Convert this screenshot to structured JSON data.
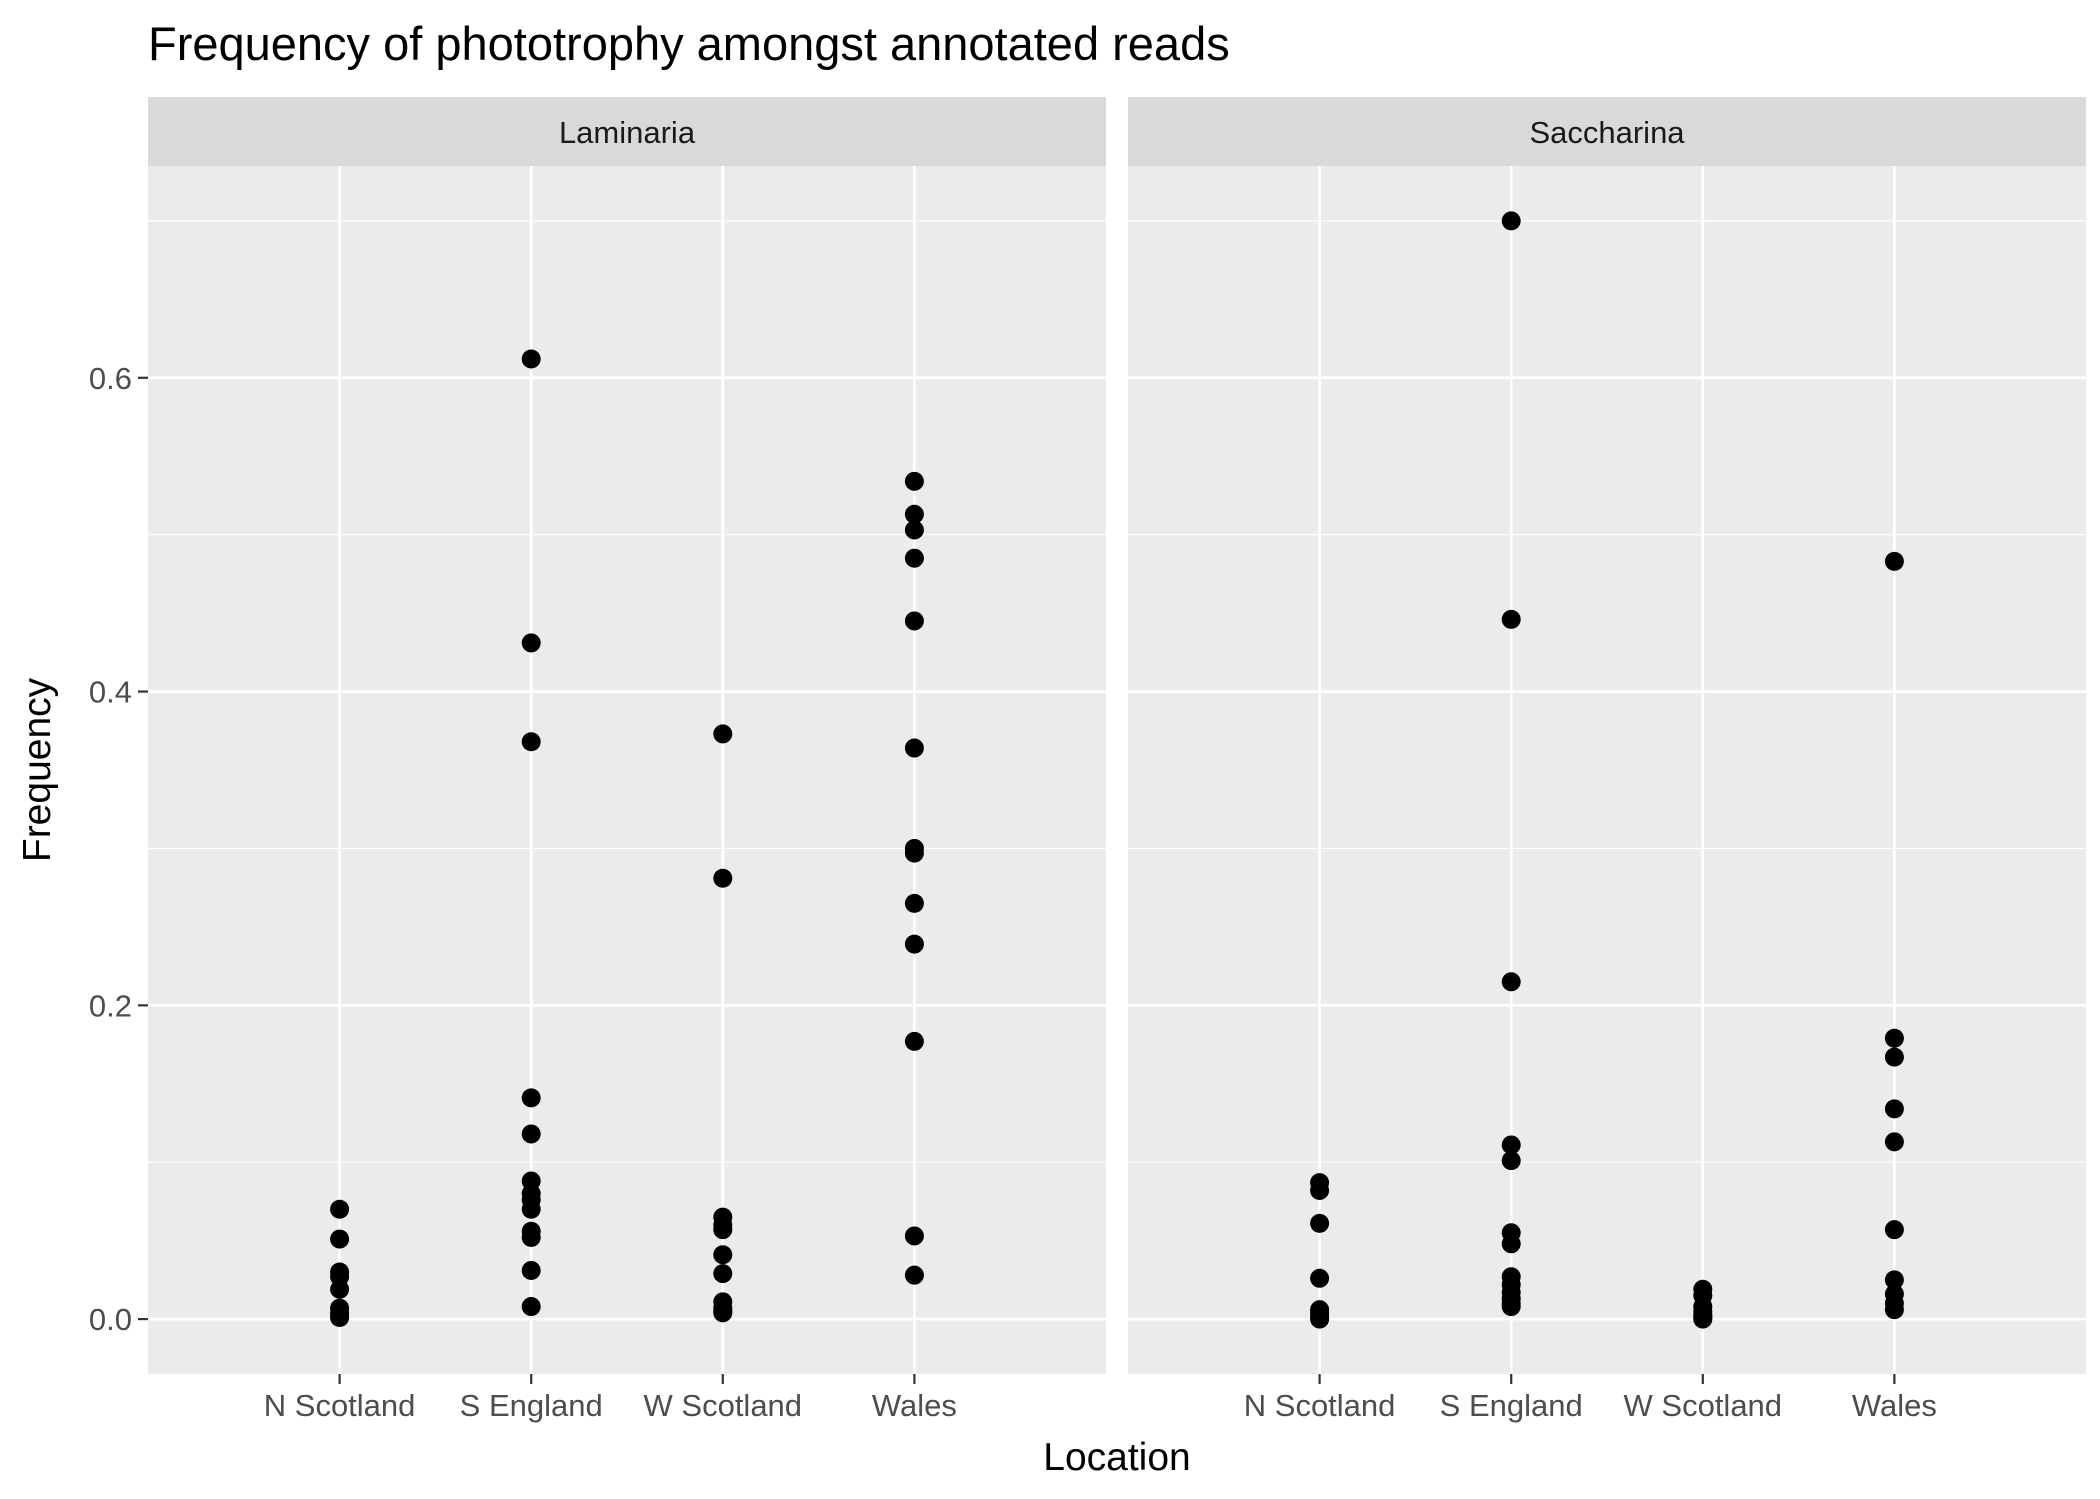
{
  "chart_data": {
    "type": "scatter",
    "title": "Frequency of phototrophy amongst annotated reads",
    "xlabel": "Location",
    "ylabel": "Frequency",
    "categories": [
      "N Scotland",
      "S England",
      "W Scotland",
      "Wales"
    ],
    "ylim": [
      -0.035,
      0.735
    ],
    "yticks": [
      0.0,
      0.2,
      0.4,
      0.6
    ],
    "ytick_labels": [
      "0.0",
      "0.2",
      "0.4",
      "0.6"
    ],
    "grid": true,
    "point_color": "#000000",
    "panel_background": "#ebebeb",
    "strip_background": "#d9d9d9",
    "facets": [
      {
        "name": "Laminaria",
        "points": {
          "N Scotland": [
            0.07,
            0.051,
            0.03,
            0.027,
            0.019,
            0.007,
            0.004,
            0.002,
            0.001
          ],
          "S England": [
            0.612,
            0.431,
            0.368,
            0.141,
            0.118,
            0.088,
            0.08,
            0.076,
            0.07,
            0.056,
            0.052,
            0.031,
            0.008
          ],
          "W Scotland": [
            0.373,
            0.281,
            0.065,
            0.06,
            0.057,
            0.041,
            0.029,
            0.011,
            0.007,
            0.005,
            0.004
          ],
          "Wales": [
            0.534,
            0.513,
            0.503,
            0.485,
            0.445,
            0.364,
            0.3,
            0.297,
            0.265,
            0.239,
            0.177,
            0.053,
            0.028
          ]
        }
      },
      {
        "name": "Saccharina",
        "points": {
          "N Scotland": [
            0.087,
            0.082,
            0.061,
            0.026,
            0.006,
            0.004,
            0.002,
            0.001,
            0.0
          ],
          "S England": [
            0.7,
            0.446,
            0.215,
            0.111,
            0.101,
            0.055,
            0.048,
            0.027,
            0.022,
            0.017,
            0.013,
            0.01,
            0.008
          ],
          "W Scotland": [
            0.019,
            0.015,
            0.008,
            0.005,
            0.003,
            0.002,
            0.001,
            0.0
          ],
          "Wales": [
            0.483,
            0.179,
            0.167,
            0.134,
            0.113,
            0.057,
            0.025,
            0.016,
            0.01,
            0.006
          ]
        }
      }
    ]
  }
}
